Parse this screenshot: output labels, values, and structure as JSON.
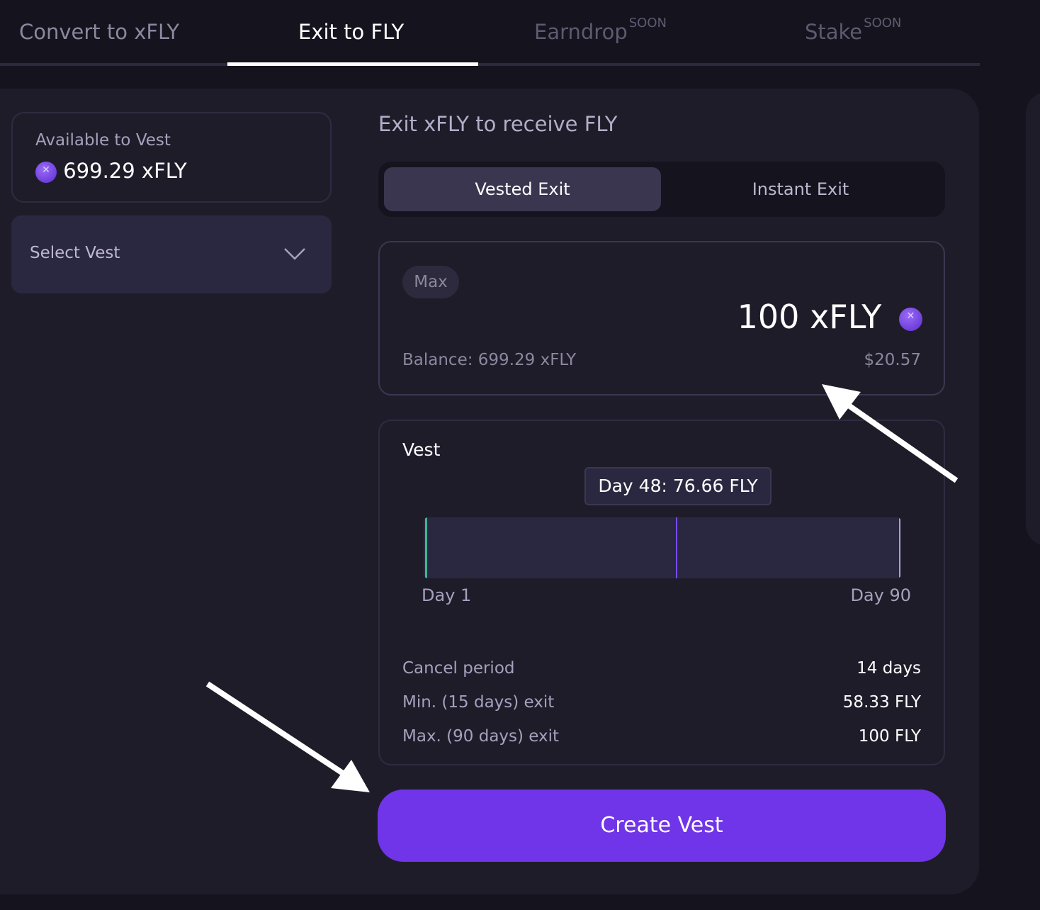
{
  "tabs": [
    {
      "label": "Convert to xFLY",
      "badge": ""
    },
    {
      "label": "Exit to FLY",
      "badge": ""
    },
    {
      "label": "Earndrop",
      "badge": "SOON"
    },
    {
      "label": "Stake",
      "badge": "SOON"
    }
  ],
  "active_tab": "Exit to FLY",
  "available": {
    "label": "Available to Vest",
    "amount": "699.29 xFLY",
    "icon": "xfly-token-icon"
  },
  "select_vest": {
    "label": "Select Vest",
    "icon": "chevron-down-icon"
  },
  "exit": {
    "title": "Exit xFLY to receive FLY",
    "modes": [
      "Vested Exit",
      "Instant Exit"
    ],
    "active_mode": "Vested Exit",
    "max_label": "Max",
    "amount": "100 xFLY",
    "balance": "Balance: 699.29 xFLY",
    "usd": "$20.57"
  },
  "vest": {
    "title": "Vest",
    "tooltip": "Day 48: 76.66 FLY",
    "start_label": "Day 1",
    "end_label": "Day 90",
    "selected_day": 48,
    "min_day": 1,
    "max_day": 90,
    "details": [
      {
        "label": "Cancel period",
        "value": "14 days"
      },
      {
        "label": "Min. (15 days) exit",
        "value": "58.33 FLY"
      },
      {
        "label": "Max. (90 days) exit",
        "value": "100 FLY"
      }
    ]
  },
  "create_button": "Create Vest",
  "colors": {
    "accent": "#7035e8",
    "start_marker": "#3fb58f",
    "background": "#15131d",
    "panel": "#1f1c2a"
  }
}
